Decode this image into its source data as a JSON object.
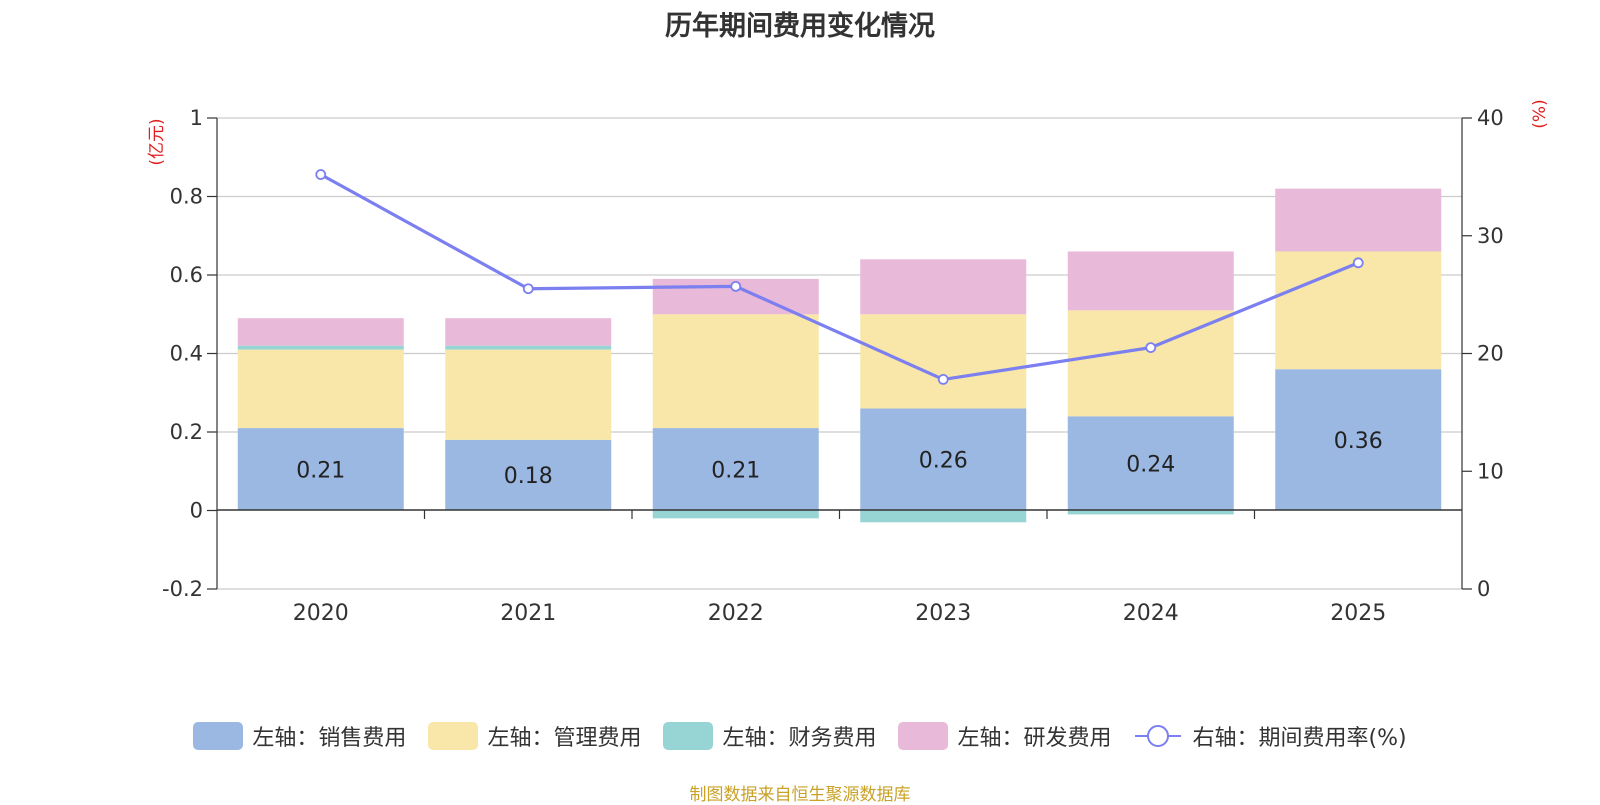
{
  "title": "历年期间费用变化情况",
  "source_note": "制图数据来自恒生聚源数据库",
  "chart_data": {
    "type": "bar",
    "stacked": true,
    "title": "历年期间费用变化情况",
    "categories": [
      "2020",
      "2021",
      "2022",
      "2023",
      "2024",
      "2025"
    ],
    "left_axis": {
      "unit_label": "(亿元)",
      "range": [
        -0.2,
        1
      ],
      "ticks": [
        "-0.2",
        "0",
        "0.2",
        "0.4",
        "0.6",
        "0.8",
        "1"
      ]
    },
    "right_axis": {
      "unit_label": "(%)",
      "range": [
        0,
        40
      ],
      "ticks": [
        "0",
        "10",
        "20",
        "30",
        "40"
      ]
    },
    "series": [
      {
        "name": "左轴：销售费用",
        "type": "bar",
        "axis": "left",
        "color": "#9bb8e2",
        "values": [
          0.21,
          0.18,
          0.21,
          0.26,
          0.24,
          0.36
        ],
        "labels": [
          "0.21",
          "0.18",
          "0.21",
          "0.26",
          "0.24",
          "0.36"
        ]
      },
      {
        "name": "左轴：管理费用",
        "type": "bar",
        "axis": "left",
        "color": "#f8e7a8",
        "values": [
          0.2,
          0.23,
          0.29,
          0.24,
          0.27,
          0.3
        ]
      },
      {
        "name": "左轴：财务费用",
        "type": "bar",
        "axis": "left",
        "color": "#97d4d4",
        "values": [
          0.01,
          0.01,
          -0.02,
          -0.03,
          -0.01,
          0.0
        ]
      },
      {
        "name": "左轴：研发费用",
        "type": "bar",
        "axis": "left",
        "color": "#e8b9d8",
        "values": [
          0.07,
          0.07,
          0.09,
          0.14,
          0.15,
          0.16
        ]
      },
      {
        "name": "右轴：期间费用率(%)",
        "type": "line",
        "axis": "right",
        "color": "#7b7ff0",
        "values": [
          35.2,
          25.5,
          25.7,
          17.8,
          20.5,
          27.7
        ]
      }
    ],
    "legend_position": "bottom",
    "grid": true
  }
}
